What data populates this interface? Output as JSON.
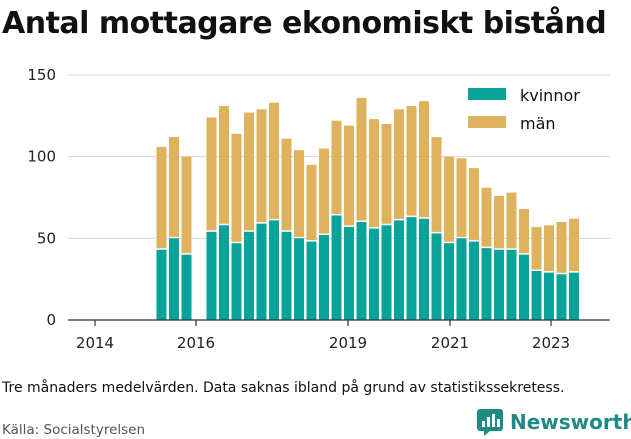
{
  "title": "Antal mottagare ekonomiskt bistånd",
  "note": "Tre månaders medelvärden. Data saknas ibland på grund av statistikssekretess.",
  "source": "Källa: Socialstyrelsen",
  "brand": "Newsworthy",
  "colors": {
    "kvinnor": "#0aa39a",
    "man": "#dfb25d",
    "grid": "#d9d9d9",
    "brand": "#1f8a86"
  },
  "chart_data": {
    "type": "bar",
    "stacked": true,
    "legend_position": "top-right",
    "grid": true,
    "ylim": [
      0,
      150
    ],
    "yticks": [
      0,
      50,
      100,
      150
    ],
    "xticks": [
      "2014",
      "2016",
      "2019",
      "2021",
      "2023"
    ],
    "series": [
      {
        "name": "kvinnor",
        "values": [
          43,
          50,
          40,
          null,
          54,
          58,
          47,
          54,
          59,
          61,
          54,
          50,
          48,
          52,
          64,
          57,
          60,
          56,
          58,
          61,
          63,
          62,
          53,
          47,
          50,
          48,
          44,
          43,
          43,
          40,
          30,
          29,
          28,
          29
        ]
      },
      {
        "name": "män",
        "values": [
          63,
          62,
          60,
          null,
          70,
          73,
          67,
          73,
          70,
          72,
          57,
          54,
          47,
          53,
          58,
          62,
          76,
          67,
          62,
          68,
          68,
          72,
          59,
          53,
          49,
          45,
          37,
          33,
          35,
          28,
          27,
          29,
          32,
          33
        ]
      }
    ]
  }
}
